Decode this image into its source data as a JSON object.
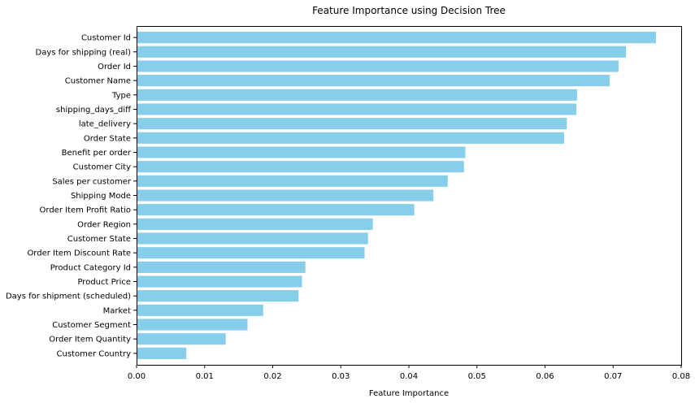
{
  "chart_data": {
    "type": "bar",
    "orientation": "horizontal",
    "title": "Feature Importance using Decision Tree",
    "xlabel": "Feature Importance",
    "ylabel": "",
    "xlim": [
      0,
      0.08
    ],
    "xticks": [
      "0.00",
      "0.01",
      "0.02",
      "0.03",
      "0.04",
      "0.05",
      "0.06",
      "0.07",
      "0.08"
    ],
    "grid": false,
    "bar_color": "#87CEEB",
    "categories": [
      "Customer Id",
      "Days for shipping (real)",
      "Order Id",
      "Customer Name",
      "Type",
      "shipping_days_diff",
      "late_delivery",
      "Order State",
      "Benefit per order",
      "Customer City",
      "Sales per customer",
      "Shipping Mode",
      "Order Item Profit Ratio",
      "Order Region",
      "Customer State",
      "Order Item Discount Rate",
      "Product Category Id",
      "Product Price",
      "Days for shipment (scheduled)",
      "Market",
      "Customer Segment",
      "Order Item Quantity",
      "Customer Country"
    ],
    "values": [
      0.0763,
      0.0719,
      0.0708,
      0.0695,
      0.0647,
      0.0646,
      0.0632,
      0.0628,
      0.0483,
      0.0481,
      0.0457,
      0.0436,
      0.0408,
      0.0347,
      0.034,
      0.0335,
      0.0248,
      0.0243,
      0.0238,
      0.0186,
      0.0163,
      0.0131,
      0.0073
    ]
  }
}
